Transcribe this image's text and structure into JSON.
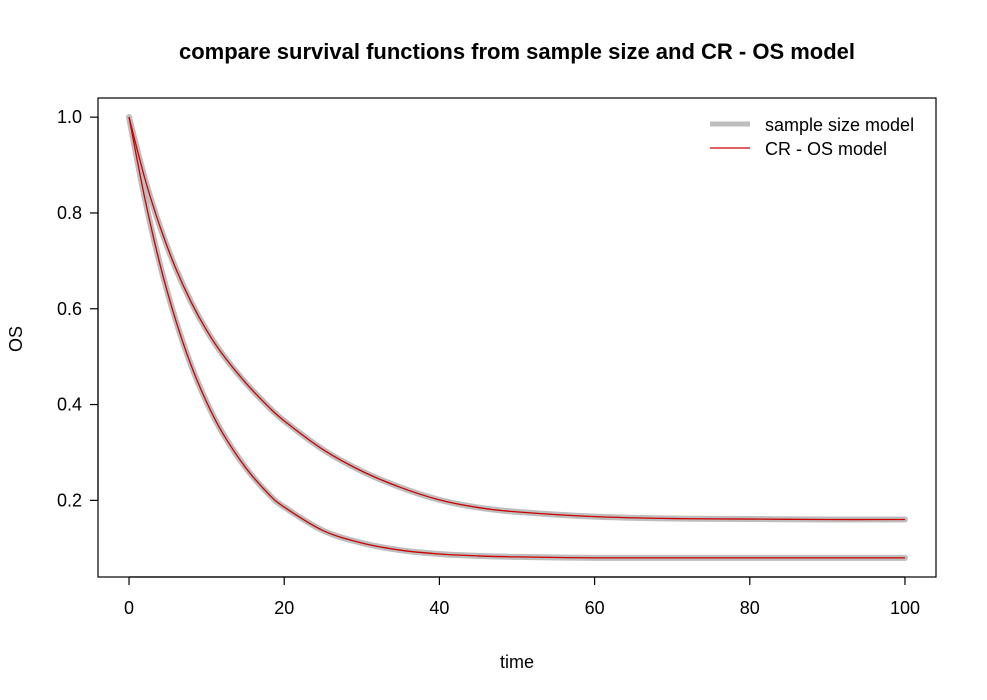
{
  "chart_data": {
    "type": "line",
    "title": "compare survival functions from sample size and CR - OS model",
    "xlabel": "time",
    "ylabel": "OS",
    "xlim": [
      -4,
      104
    ],
    "ylim": [
      0.04,
      1.04
    ],
    "xticks": [
      0,
      20,
      40,
      60,
      80,
      100
    ],
    "yticks": [
      0.2,
      0.4,
      0.6,
      0.8,
      1.0
    ],
    "xtick_labels": [
      "0",
      "20",
      "40",
      "60",
      "80",
      "100"
    ],
    "ytick_labels": [
      "0.2",
      "0.4",
      "0.6",
      "0.8",
      "1.0"
    ],
    "grid": false,
    "legend_position": "top-right",
    "legend": [
      {
        "label": "sample size model",
        "color": "#bebebe"
      },
      {
        "label": "CR - OS model",
        "color": "#cc0000"
      }
    ],
    "curves": [
      {
        "x": [
          0,
          2,
          4,
          6,
          8,
          10,
          12,
          15,
          18,
          20,
          25,
          30,
          35,
          40,
          45,
          50,
          60,
          70,
          80,
          90,
          100
        ],
        "y": [
          1.0,
          0.874,
          0.771,
          0.685,
          0.614,
          0.555,
          0.506,
          0.446,
          0.395,
          0.366,
          0.306,
          0.261,
          0.227,
          0.201,
          0.185,
          0.176,
          0.166,
          0.162,
          0.161,
          0.16,
          0.16
        ]
      },
      {
        "x": [
          0,
          2,
          4,
          6,
          8,
          10,
          12,
          15,
          18,
          20,
          25,
          30,
          35,
          40,
          45,
          50,
          60,
          70,
          80,
          90,
          100
        ],
        "y": [
          1.0,
          0.833,
          0.692,
          0.577,
          0.482,
          0.405,
          0.342,
          0.269,
          0.213,
          0.186,
          0.137,
          0.111,
          0.096,
          0.088,
          0.084,
          0.082,
          0.08,
          0.08,
          0.08,
          0.08,
          0.08
        ]
      }
    ]
  }
}
